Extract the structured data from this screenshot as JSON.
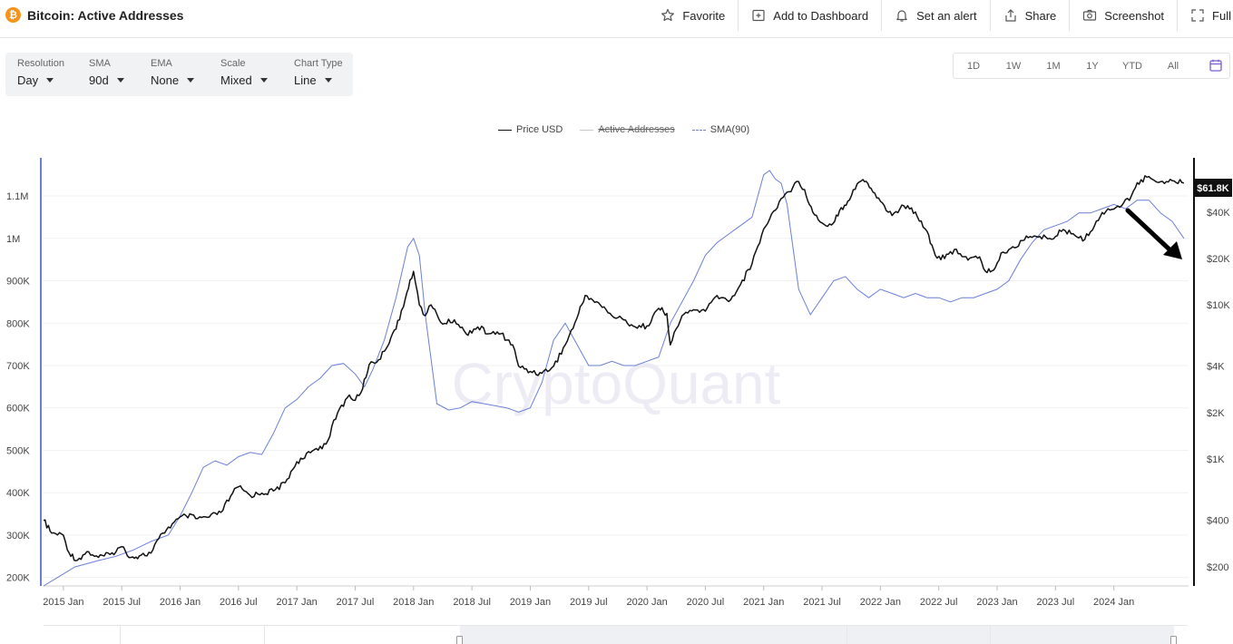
{
  "header": {
    "coin_symbol": "₿",
    "title": "Bitcoin: Active Addresses",
    "actions": [
      {
        "label": "Favorite",
        "icon": "star-icon"
      },
      {
        "label": "Add to Dashboard",
        "icon": "add-dashboard-icon"
      },
      {
        "label": "Set an alert",
        "icon": "bell-icon"
      },
      {
        "label": "Share",
        "icon": "share-icon"
      },
      {
        "label": "Screenshot",
        "icon": "camera-icon"
      },
      {
        "label": "Full",
        "icon": "fullscreen-icon"
      }
    ]
  },
  "toolbar": {
    "resolution": {
      "label": "Resolution",
      "value": "Day"
    },
    "sma": {
      "label": "SMA",
      "value": "90d"
    },
    "ema": {
      "label": "EMA",
      "value": "None"
    },
    "scale": {
      "label": "Scale",
      "value": "Mixed"
    },
    "chart_type": {
      "label": "Chart Type",
      "value": "Line"
    }
  },
  "ranges": [
    "1D",
    "1W",
    "1M",
    "1Y",
    "YTD",
    "All"
  ],
  "legend": {
    "price": "Price USD",
    "active": "Active Addresses",
    "sma": "SMA(90)"
  },
  "watermark": "CryptoQuant",
  "colors": {
    "price": "#111111",
    "sma": "#6b7fd7",
    "active": "#c9c9c9",
    "accent": "#7b5cd6",
    "brand": "#f7931a"
  },
  "chart_data": {
    "type": "line",
    "x_ticks": [
      "2015 Jan",
      "2015 Jul",
      "2016 Jan",
      "2016 Jul",
      "2017 Jan",
      "2017 Jul",
      "2018 Jan",
      "2018 Jul",
      "2019 Jan",
      "2019 Jul",
      "2020 Jan",
      "2020 Jul",
      "2021 Jan",
      "2021 Jul",
      "2022 Jan",
      "2022 Jul",
      "2023 Jan",
      "2023 Jul",
      "2024 Jan"
    ],
    "left_axis": {
      "ticks": [
        "200K",
        "300K",
        "400K",
        "500K",
        "600K",
        "700K",
        "800K",
        "900K",
        "1M",
        "1.1M"
      ],
      "values": [
        200000,
        300000,
        400000,
        500000,
        600000,
        700000,
        800000,
        900000,
        1000000,
        1100000
      ],
      "range": [
        180000,
        1190000
      ]
    },
    "right_axis": {
      "scale": "log",
      "ticks": [
        "$200",
        "$400",
        "$1K",
        "$2K",
        "$4K",
        "$10K",
        "$20K",
        "$40K"
      ],
      "values": [
        200,
        400,
        1000,
        2000,
        4000,
        10000,
        20000,
        40000
      ],
      "range": [
        150,
        90000
      ]
    },
    "price_label": "$61.8K",
    "series": [
      {
        "name": "Price USD",
        "axis": "right",
        "x": [
          2014.83,
          2014.9,
          2015.0,
          2015.05,
          2015.12,
          2015.2,
          2015.3,
          2015.4,
          2015.5,
          2015.58,
          2015.65,
          2015.75,
          2015.85,
          2015.95,
          2016.05,
          2016.15,
          2016.25,
          2016.35,
          2016.45,
          2016.5,
          2016.6,
          2016.7,
          2016.8,
          2016.9,
          2017.0,
          2017.05,
          2017.15,
          2017.25,
          2017.35,
          2017.45,
          2017.5,
          2017.55,
          2017.62,
          2017.7,
          2017.75,
          2017.82,
          2017.88,
          2017.93,
          2017.97,
          2018.0,
          2018.05,
          2018.1,
          2018.15,
          2018.25,
          2018.35,
          2018.45,
          2018.55,
          2018.65,
          2018.75,
          2018.85,
          2018.9,
          2019.0,
          2019.1,
          2019.2,
          2019.3,
          2019.4,
          2019.47,
          2019.52,
          2019.6,
          2019.7,
          2019.8,
          2019.9,
          2020.0,
          2020.1,
          2020.17,
          2020.2,
          2020.3,
          2020.4,
          2020.5,
          2020.6,
          2020.7,
          2020.8,
          2020.9,
          2020.95,
          2021.0,
          2021.05,
          2021.15,
          2021.25,
          2021.3,
          2021.35,
          2021.42,
          2021.5,
          2021.58,
          2021.65,
          2021.72,
          2021.8,
          2021.85,
          2021.92,
          2022.0,
          2022.1,
          2022.2,
          2022.3,
          2022.4,
          2022.47,
          2022.55,
          2022.65,
          2022.75,
          2022.85,
          2022.9,
          2022.97,
          2023.05,
          2023.15,
          2023.25,
          2023.35,
          2023.45,
          2023.55,
          2023.65,
          2023.75,
          2023.85,
          2023.95,
          2024.05,
          2024.15,
          2024.2,
          2024.3,
          2024.4,
          2024.5,
          2024.6
        ],
        "values": [
          400,
          330,
          320,
          245,
          220,
          250,
          230,
          240,
          270,
          230,
          235,
          245,
          330,
          390,
          430,
          410,
          420,
          450,
          600,
          660,
          580,
          600,
          620,
          700,
          960,
          1000,
          1150,
          1250,
          2000,
          2600,
          2400,
          2700,
          4100,
          4400,
          5000,
          6500,
          8000,
          11000,
          14500,
          16500,
          10000,
          8500,
          10000,
          7500,
          8000,
          6500,
          7200,
          6500,
          6500,
          5500,
          4000,
          3700,
          3600,
          4000,
          5500,
          8200,
          11500,
          11000,
          10000,
          8500,
          8000,
          7200,
          7300,
          9500,
          8800,
          5500,
          8500,
          9300,
          9100,
          11500,
          10500,
          13500,
          18500,
          24000,
          31000,
          36000,
          49000,
          58000,
          63000,
          56000,
          40000,
          34000,
          33000,
          41000,
          47000,
          61000,
          65000,
          57000,
          47000,
          38000,
          44000,
          40000,
          30000,
          21000,
          20000,
          23000,
          19500,
          20500,
          16500,
          16800,
          22000,
          23500,
          28000,
          27500,
          27000,
          30000,
          29000,
          26500,
          35000,
          42000,
          43000,
          51000,
          62000,
          68000,
          63000,
          64000,
          61800
        ]
      },
      {
        "name": "SMA(90)",
        "axis": "left",
        "x": [
          2014.83,
          2014.95,
          2015.1,
          2015.3,
          2015.45,
          2015.6,
          2015.75,
          2015.9,
          2016.0,
          2016.1,
          2016.2,
          2016.3,
          2016.4,
          2016.5,
          2016.6,
          2016.7,
          2016.8,
          2016.9,
          2017.0,
          2017.1,
          2017.2,
          2017.3,
          2017.4,
          2017.5,
          2017.58,
          2017.65,
          2017.75,
          2017.85,
          2017.95,
          2018.0,
          2018.05,
          2018.1,
          2018.2,
          2018.3,
          2018.4,
          2018.5,
          2018.6,
          2018.7,
          2018.8,
          2018.9,
          2019.0,
          2019.1,
          2019.2,
          2019.3,
          2019.4,
          2019.5,
          2019.6,
          2019.7,
          2019.8,
          2019.9,
          2020.0,
          2020.1,
          2020.2,
          2020.3,
          2020.4,
          2020.5,
          2020.6,
          2020.7,
          2020.8,
          2020.9,
          2021.0,
          2021.05,
          2021.1,
          2021.15,
          2021.2,
          2021.3,
          2021.4,
          2021.5,
          2021.6,
          2021.7,
          2021.8,
          2021.9,
          2022.0,
          2022.1,
          2022.2,
          2022.3,
          2022.4,
          2022.5,
          2022.6,
          2022.7,
          2022.8,
          2022.9,
          2023.0,
          2023.1,
          2023.2,
          2023.3,
          2023.4,
          2023.5,
          2023.6,
          2023.7,
          2023.8,
          2023.9,
          2024.0,
          2024.1,
          2024.2,
          2024.3,
          2024.4,
          2024.5,
          2024.6
        ],
        "values": [
          180000,
          200000,
          225000,
          240000,
          250000,
          265000,
          285000,
          300000,
          345000,
          400000,
          460000,
          475000,
          465000,
          485000,
          495000,
          490000,
          540000,
          600000,
          620000,
          650000,
          670000,
          700000,
          705000,
          680000,
          650000,
          690000,
          760000,
          860000,
          980000,
          1000000,
          960000,
          820000,
          610000,
          595000,
          600000,
          615000,
          610000,
          605000,
          600000,
          590000,
          600000,
          660000,
          760000,
          800000,
          750000,
          700000,
          700000,
          710000,
          700000,
          700000,
          710000,
          720000,
          800000,
          850000,
          900000,
          960000,
          990000,
          1010000,
          1030000,
          1050000,
          1150000,
          1160000,
          1140000,
          1130000,
          1080000,
          880000,
          820000,
          860000,
          900000,
          910000,
          880000,
          860000,
          880000,
          870000,
          860000,
          870000,
          860000,
          860000,
          850000,
          860000,
          860000,
          870000,
          880000,
          900000,
          950000,
          990000,
          1020000,
          1030000,
          1040000,
          1060000,
          1060000,
          1070000,
          1080000,
          1070000,
          1090000,
          1090000,
          1060000,
          1040000,
          1000000
        ]
      }
    ]
  }
}
